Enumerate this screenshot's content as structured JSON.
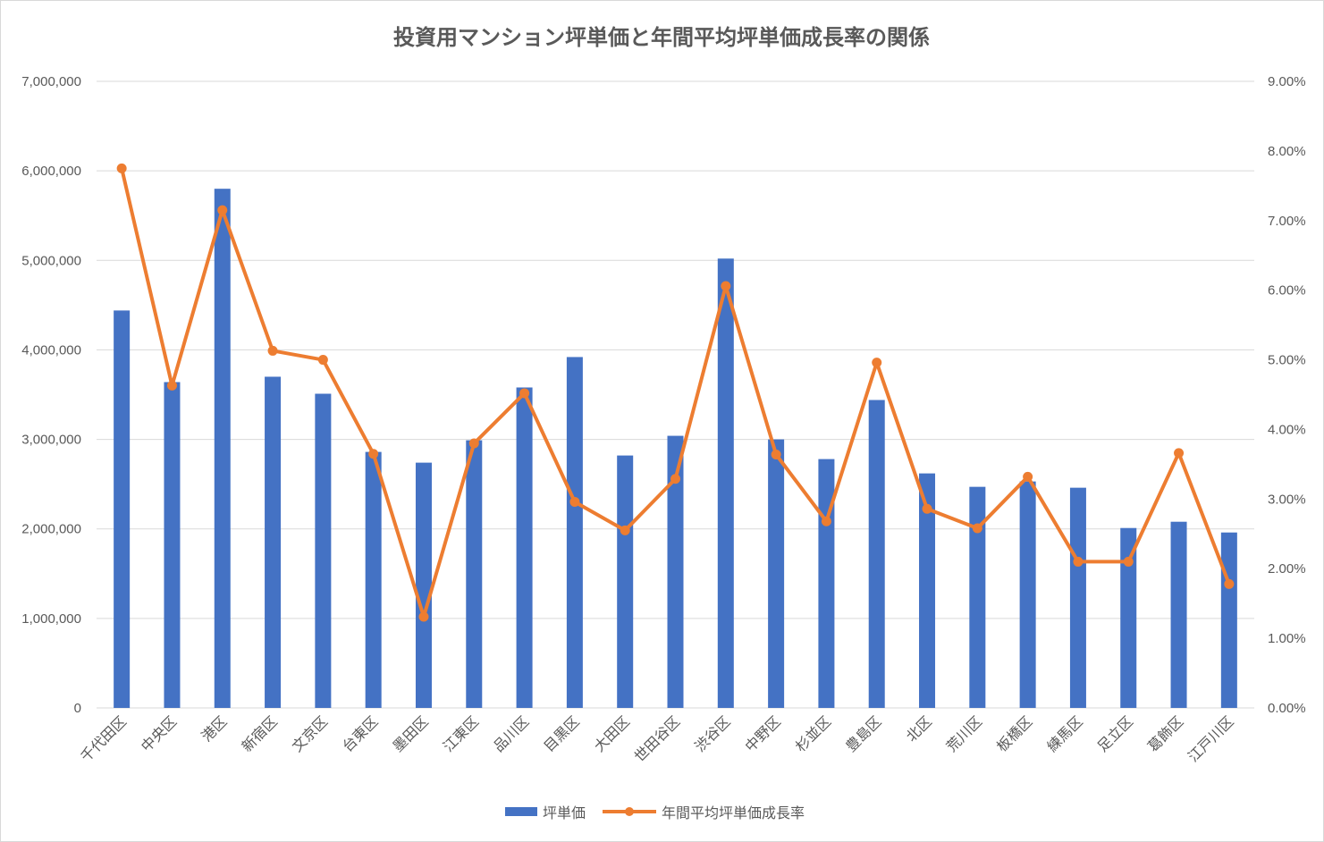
{
  "chart_data": {
    "type": "bar",
    "title": "投資用マンション坪単価と年間平均坪単価成長率の関係",
    "categories": [
      "千代田区",
      "中央区",
      "港区",
      "新宿区",
      "文京区",
      "台東区",
      "墨田区",
      "江東区",
      "品川区",
      "目黒区",
      "大田区",
      "世田谷区",
      "渋谷区",
      "中野区",
      "杉並区",
      "豊島区",
      "北区",
      "荒川区",
      "板橋区",
      "練馬区",
      "足立区",
      "葛飾区",
      "江戸川区"
    ],
    "series": [
      {
        "name": "坪単価",
        "type": "bar",
        "axis": "left",
        "color": "#4472c4",
        "values": [
          4440000,
          3640000,
          5800000,
          3700000,
          3510000,
          2860000,
          2740000,
          2990000,
          3580000,
          3920000,
          2820000,
          3040000,
          5020000,
          3000000,
          2780000,
          3440000,
          2620000,
          2470000,
          2530000,
          2460000,
          2010000,
          2080000,
          1960000
        ]
      },
      {
        "name": "年間平均坪単価成長率",
        "type": "line",
        "axis": "right",
        "color": "#ed7d31",
        "values": [
          0.0775,
          0.0463,
          0.0715,
          0.0513,
          0.05,
          0.0365,
          0.0131,
          0.038,
          0.0452,
          0.0296,
          0.0255,
          0.0329,
          0.0606,
          0.0364,
          0.0268,
          0.0496,
          0.0286,
          0.0258,
          0.0332,
          0.021,
          0.021,
          0.0366,
          0.0178
        ]
      }
    ],
    "y_left": {
      "min": 0,
      "max": 7000000,
      "ticks": [
        0,
        1000000,
        2000000,
        3000000,
        4000000,
        5000000,
        6000000,
        7000000
      ],
      "tick_labels": [
        "0",
        "1,000,000",
        "2,000,000",
        "3,000,000",
        "4,000,000",
        "5,000,000",
        "6,000,000",
        "7,000,000"
      ]
    },
    "y_right": {
      "min": 0,
      "max": 0.09,
      "ticks": [
        0,
        0.01,
        0.02,
        0.03,
        0.04,
        0.05,
        0.06,
        0.07,
        0.08,
        0.09
      ],
      "tick_labels": [
        "0.00%",
        "1.00%",
        "2.00%",
        "3.00%",
        "4.00%",
        "5.00%",
        "6.00%",
        "7.00%",
        "8.00%",
        "9.00%"
      ]
    },
    "grid": true,
    "legend": "bottom",
    "legend_items": [
      "坪単価",
      "年間平均坪単価成長率"
    ]
  }
}
